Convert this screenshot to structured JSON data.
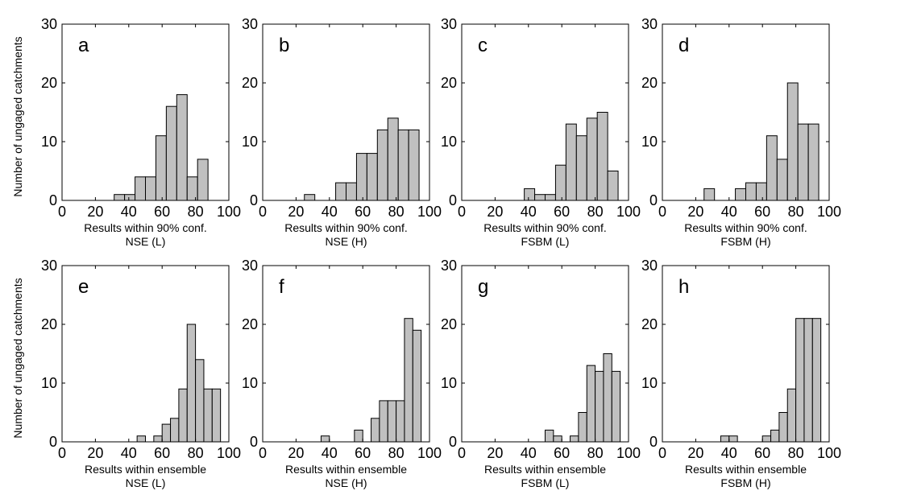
{
  "y_axis_label": "Number of ungaged catchments",
  "colors": {
    "bar_fill": "#c0c0c0",
    "bar_stroke": "#000000",
    "axis": "#000000"
  },
  "chart_data": [
    {
      "type": "bar",
      "panel_letter": "a",
      "xlabel": "Results within 90% conf.",
      "subtitle": "NSE (L)",
      "xlim": [
        0,
        100
      ],
      "ylim": [
        0,
        30
      ],
      "xticks": [
        "0",
        "20",
        "40",
        "60",
        "80",
        "100"
      ],
      "yticks": [
        "0",
        "10",
        "20",
        "30"
      ],
      "bin_width": 6.25,
      "bin_centers": [
        34.375,
        40.625,
        46.875,
        53.125,
        59.375,
        65.625,
        71.875,
        78.125,
        84.375
      ],
      "values": [
        1,
        1,
        4,
        4,
        11,
        16,
        18,
        4,
        7
      ]
    },
    {
      "type": "bar",
      "panel_letter": "b",
      "xlabel": "Results within 90% conf.",
      "subtitle": "NSE (H)",
      "xlim": [
        0,
        100
      ],
      "ylim": [
        0,
        30
      ],
      "xticks": [
        "0",
        "20",
        "40",
        "60",
        "80",
        "100"
      ],
      "yticks": [
        "0",
        "10",
        "20",
        "30"
      ],
      "bin_width": 6.25,
      "bin_centers": [
        28.125,
        46.875,
        53.125,
        59.375,
        65.625,
        71.875,
        78.125,
        84.375,
        90.625
      ],
      "values": [
        1,
        3,
        3,
        8,
        8,
        12,
        14,
        12,
        12
      ]
    },
    {
      "type": "bar",
      "panel_letter": "c",
      "xlabel": "Results within 90% conf.",
      "subtitle": "FSBM (L)",
      "xlim": [
        0,
        100
      ],
      "ylim": [
        0,
        30
      ],
      "xticks": [
        "0",
        "20",
        "40",
        "60",
        "80",
        "100"
      ],
      "yticks": [
        "0",
        "10",
        "20",
        "30"
      ],
      "bin_width": 6.25,
      "bin_centers": [
        40.625,
        46.875,
        53.125,
        59.375,
        65.625,
        71.875,
        78.125,
        84.375,
        90.625
      ],
      "values": [
        2,
        1,
        1,
        6,
        13,
        11,
        14,
        15,
        5
      ]
    },
    {
      "type": "bar",
      "panel_letter": "d",
      "xlabel": "Results within 90% conf.",
      "subtitle": "FSBM (H)",
      "xlim": [
        0,
        100
      ],
      "ylim": [
        0,
        30
      ],
      "xticks": [
        "0",
        "20",
        "40",
        "60",
        "80",
        "100"
      ],
      "yticks": [
        "0",
        "10",
        "20",
        "30"
      ],
      "bin_width": 6.25,
      "bin_centers": [
        28.125,
        46.875,
        53.125,
        59.375,
        65.625,
        71.875,
        78.125,
        84.375,
        90.625
      ],
      "values": [
        2,
        2,
        3,
        3,
        11,
        7,
        20,
        13,
        13
      ]
    },
    {
      "type": "bar",
      "panel_letter": "e",
      "xlabel": "Results within ensemble",
      "subtitle": "NSE (L)",
      "xlim": [
        0,
        100
      ],
      "ylim": [
        0,
        30
      ],
      "xticks": [
        "0",
        "20",
        "40",
        "60",
        "80",
        "100"
      ],
      "yticks": [
        "0",
        "10",
        "20",
        "30"
      ],
      "bin_width": 5,
      "bin_centers": [
        47.5,
        57.5,
        62.5,
        67.5,
        72.5,
        77.5,
        82.5,
        87.5,
        92.5
      ],
      "values": [
        1,
        1,
        3,
        4,
        9,
        20,
        14,
        9,
        9
      ]
    },
    {
      "type": "bar",
      "panel_letter": "f",
      "xlabel": "Results within ensemble",
      "subtitle": "NSE (H)",
      "xlim": [
        0,
        100
      ],
      "ylim": [
        0,
        30
      ],
      "xticks": [
        "0",
        "20",
        "40",
        "60",
        "80",
        "100"
      ],
      "yticks": [
        "0",
        "10",
        "20",
        "30"
      ],
      "bin_width": 5,
      "bin_centers": [
        37.5,
        57.5,
        67.5,
        72.5,
        77.5,
        82.5,
        87.5,
        92.5
      ],
      "values": [
        1,
        2,
        4,
        7,
        7,
        7,
        21,
        19
      ]
    },
    {
      "type": "bar",
      "panel_letter": "g",
      "xlabel": "Results within ensemble",
      "subtitle": "FSBM (L)",
      "xlim": [
        0,
        100
      ],
      "ylim": [
        0,
        30
      ],
      "xticks": [
        "0",
        "20",
        "40",
        "60",
        "80",
        "100"
      ],
      "yticks": [
        "0",
        "10",
        "20",
        "30"
      ],
      "bin_width": 5,
      "bin_centers": [
        52.5,
        57.5,
        67.5,
        72.5,
        77.5,
        82.5,
        87.5,
        92.5
      ],
      "values": [
        2,
        1,
        1,
        5,
        13,
        12,
        15,
        12
      ]
    },
    {
      "type": "bar",
      "panel_letter": "h",
      "xlabel": "Results within ensemble",
      "subtitle": "FSBM (H)",
      "xlim": [
        0,
        100
      ],
      "ylim": [
        0,
        30
      ],
      "xticks": [
        "0",
        "20",
        "40",
        "60",
        "80",
        "100"
      ],
      "yticks": [
        "0",
        "10",
        "20",
        "30"
      ],
      "bin_width": 5,
      "bin_centers": [
        37.5,
        42.5,
        62.5,
        67.5,
        72.5,
        77.5,
        82.5,
        87.5,
        92.5
      ],
      "values": [
        1,
        1,
        1,
        2,
        5,
        9,
        21,
        21,
        21
      ]
    }
  ]
}
